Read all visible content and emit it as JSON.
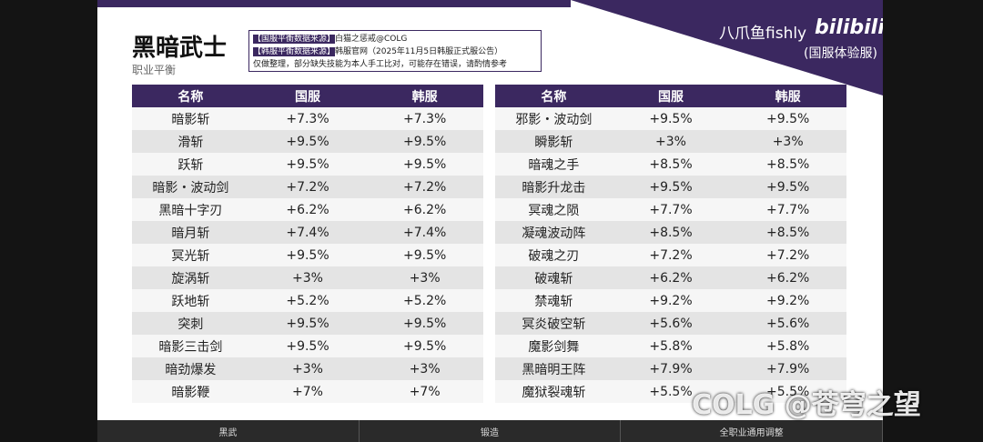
{
  "header": {
    "title": "黑暗武士",
    "subtitle": "职业平衡",
    "brand": "八爪鱼fishly",
    "platform": "bilibili",
    "server": "(国服体验服)"
  },
  "sources": [
    {
      "tag": "【国服平衡数据来源】",
      "text": "白猫之惩戒@COLG"
    },
    {
      "tag": "【韩服平衡数据来源】",
      "text": "韩服官网（2025年11月5日韩服正式服公告）"
    }
  ],
  "note": "仅做整理，部分缺失技能为本人手工比对，可能存在错误，请酌情参考",
  "tables": [
    {
      "columns": [
        "名称",
        "国服",
        "韩服"
      ],
      "rows": [
        [
          "暗影斩",
          "+7.3%",
          "+7.3%"
        ],
        [
          "滑斩",
          "+9.5%",
          "+9.5%"
        ],
        [
          "跃斩",
          "+9.5%",
          "+9.5%"
        ],
        [
          "暗影・波动剑",
          "+7.2%",
          "+7.2%"
        ],
        [
          "黑暗十字刃",
          "+6.2%",
          "+6.2%"
        ],
        [
          "暗月斩",
          "+7.4%",
          "+7.4%"
        ],
        [
          "冥光斩",
          "+9.5%",
          "+9.5%"
        ],
        [
          "旋涡斩",
          "+3%",
          "+3%"
        ],
        [
          "跃地斩",
          "+5.2%",
          "+5.2%"
        ],
        [
          "突刺",
          "+9.5%",
          "+9.5%"
        ],
        [
          "暗影三击剑",
          "+9.5%",
          "+9.5%"
        ],
        [
          "暗劲爆发",
          "+3%",
          "+3%"
        ],
        [
          "暗影鞭",
          "+7%",
          "+7%"
        ]
      ]
    },
    {
      "columns": [
        "名称",
        "国服",
        "韩服"
      ],
      "rows": [
        [
          "邪影・波动剑",
          "+9.5%",
          "+9.5%"
        ],
        [
          "瞬影斩",
          "+3%",
          "+3%"
        ],
        [
          "暗魂之手",
          "+8.5%",
          "+8.5%"
        ],
        [
          "暗影升龙击",
          "+9.5%",
          "+9.5%"
        ],
        [
          "冥魂之陨",
          "+7.7%",
          "+7.7%"
        ],
        [
          "凝魂波动阵",
          "+8.5%",
          "+8.5%"
        ],
        [
          "破魂之刃",
          "+7.2%",
          "+7.2%"
        ],
        [
          "破魂斩",
          "+6.2%",
          "+6.2%"
        ],
        [
          "禁魂斩",
          "+9.2%",
          "+9.2%"
        ],
        [
          "冥炎破空斩",
          "+5.6%",
          "+5.6%"
        ],
        [
          "魔影剑舞",
          "+5.8%",
          "+5.8%"
        ],
        [
          "黑暗明王阵",
          "+7.9%",
          "+7.9%"
        ],
        [
          "魔狱裂魂斩",
          "+5.5%",
          "+5.5%"
        ]
      ]
    }
  ],
  "footer": [
    "黑武",
    "锻造",
    "全职业通用调整"
  ],
  "watermark": "COLG @苍穹之望"
}
